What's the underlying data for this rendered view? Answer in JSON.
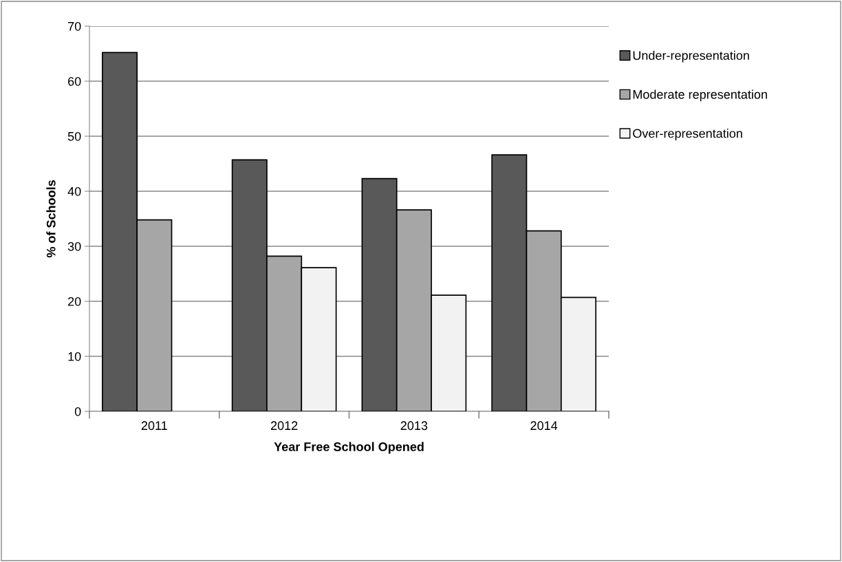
{
  "chart_data": {
    "type": "bar",
    "xlabel": "Year Free School Opened",
    "ylabel": "% of Schools",
    "categories": [
      "2011",
      "2012",
      "2013",
      "2014"
    ],
    "series": [
      {
        "name": "Under-representation",
        "color": "#595959",
        "values": [
          65.2,
          45.7,
          42.3,
          46.6
        ]
      },
      {
        "name": "Moderate representation",
        "color": "#a6a6a6",
        "values": [
          34.8,
          28.2,
          36.6,
          32.8
        ]
      },
      {
        "name": "Over-representation",
        "color": "#f2f2f2",
        "values": [
          null,
          26.1,
          21.1,
          20.7
        ]
      }
    ],
    "ylim": [
      0,
      70
    ],
    "yticks": [
      0,
      10,
      20,
      30,
      40,
      50,
      60,
      70
    ],
    "grid": "y",
    "legend": "right"
  }
}
